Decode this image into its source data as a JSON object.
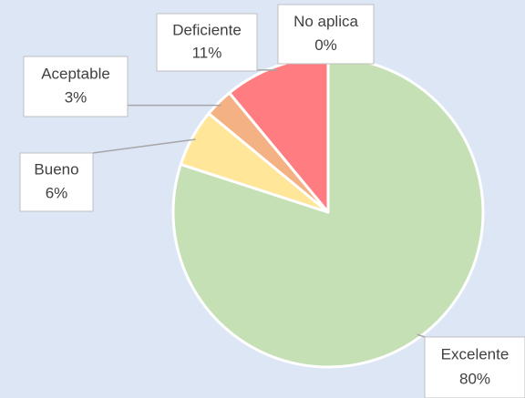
{
  "chart_data": {
    "type": "pie",
    "categories": [
      "Excelente",
      "Bueno",
      "Aceptable",
      "Deficiente",
      "No aplica"
    ],
    "values": [
      80,
      6,
      3,
      11,
      0
    ],
    "value_labels": [
      "80%",
      "6%",
      "3%",
      "11%",
      "0%"
    ],
    "colors": [
      "#c5e0b4",
      "#ffe699",
      "#f4b183",
      "#ff7c80",
      "#9dc3e6"
    ]
  }
}
